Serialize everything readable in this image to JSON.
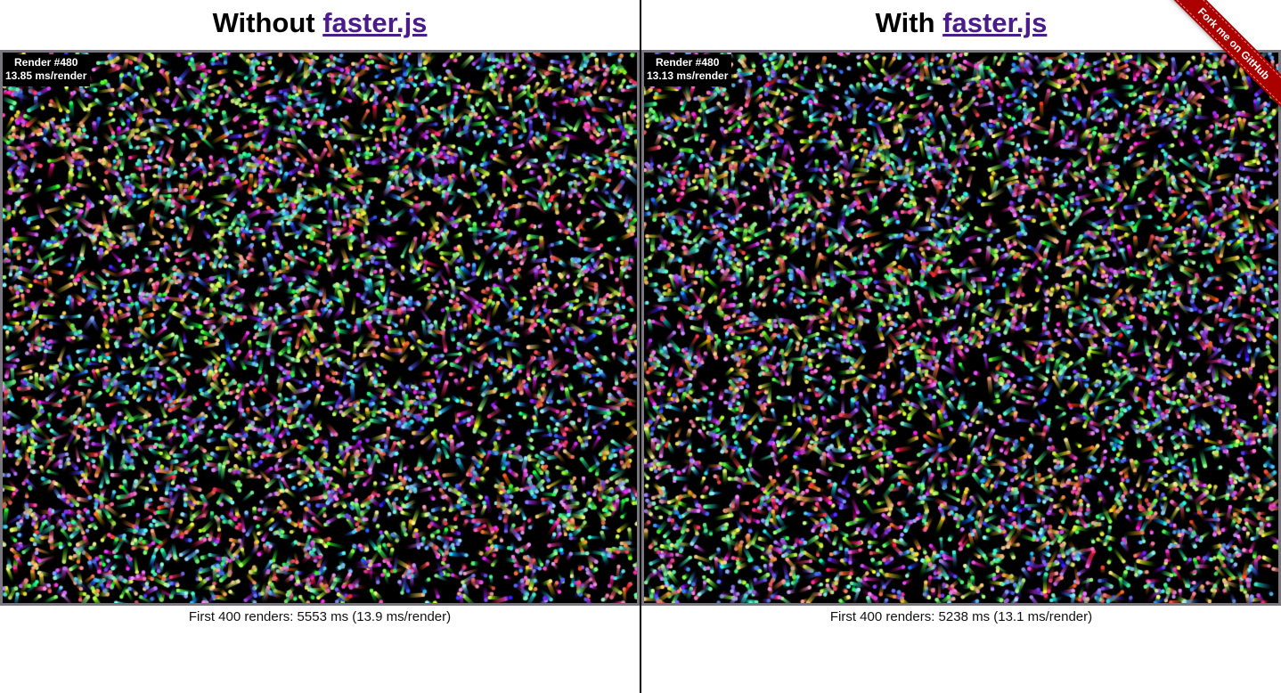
{
  "left": {
    "heading_prefix": "Without ",
    "heading_link": "faster.js",
    "stats_line1": "Render #480",
    "stats_line2": "13.85 ms/render",
    "summary": "First 400 renders: 5553 ms (13.9 ms/render)"
  },
  "right": {
    "heading_prefix": "With ",
    "heading_link": "faster.js",
    "stats_line1": "Render #480",
    "stats_line2": "13.13 ms/render",
    "summary": "First 400 renders: 5238 ms (13.1 ms/render)"
  },
  "ribbon": {
    "label": "Fork me on GitHub"
  },
  "colors": {
    "link": "#4b1a8c",
    "ribbon": "#aa0000",
    "canvas_border": "#7a7680"
  }
}
